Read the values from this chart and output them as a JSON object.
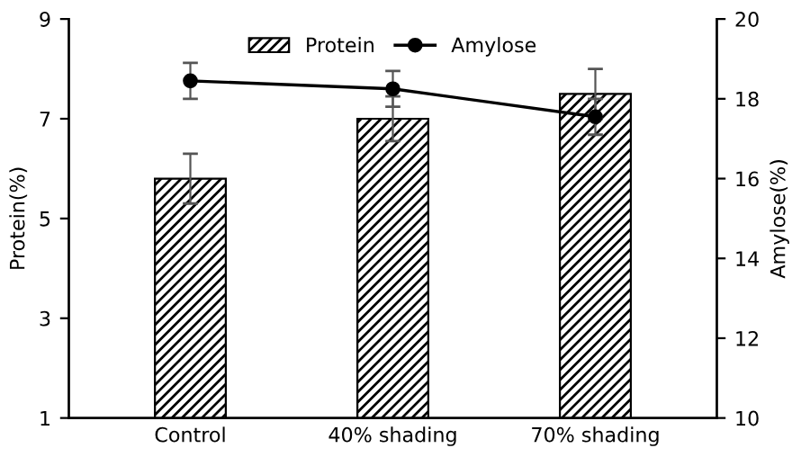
{
  "chart_data": {
    "type": "bar",
    "categories": [
      "Control",
      "40% shading",
      "70% shading"
    ],
    "ylabel": "Protein(%)",
    "y2label": "Amylose(%)",
    "series": [
      {
        "name": "Protein",
        "color": "#000000",
        "values": [
          5.8,
          7.0,
          7.5
        ],
        "errors": [
          0.5,
          0.45,
          0.5
        ]
      },
      {
        "name": "Amylose",
        "type": "line",
        "axis": "y2",
        "color": "#000000",
        "values": [
          18.45,
          18.25,
          17.55
        ],
        "errors": [
          0.45,
          0.45,
          0.45
        ]
      }
    ],
    "ylim": [
      1,
      9
    ],
    "yticks": [
      1,
      3,
      5,
      7,
      9
    ],
    "y2lim": [
      10,
      20
    ],
    "y2ticks": [
      10,
      12,
      14,
      16,
      18,
      20
    ],
    "legend": "top",
    "marker": "circle",
    "grid": false
  }
}
